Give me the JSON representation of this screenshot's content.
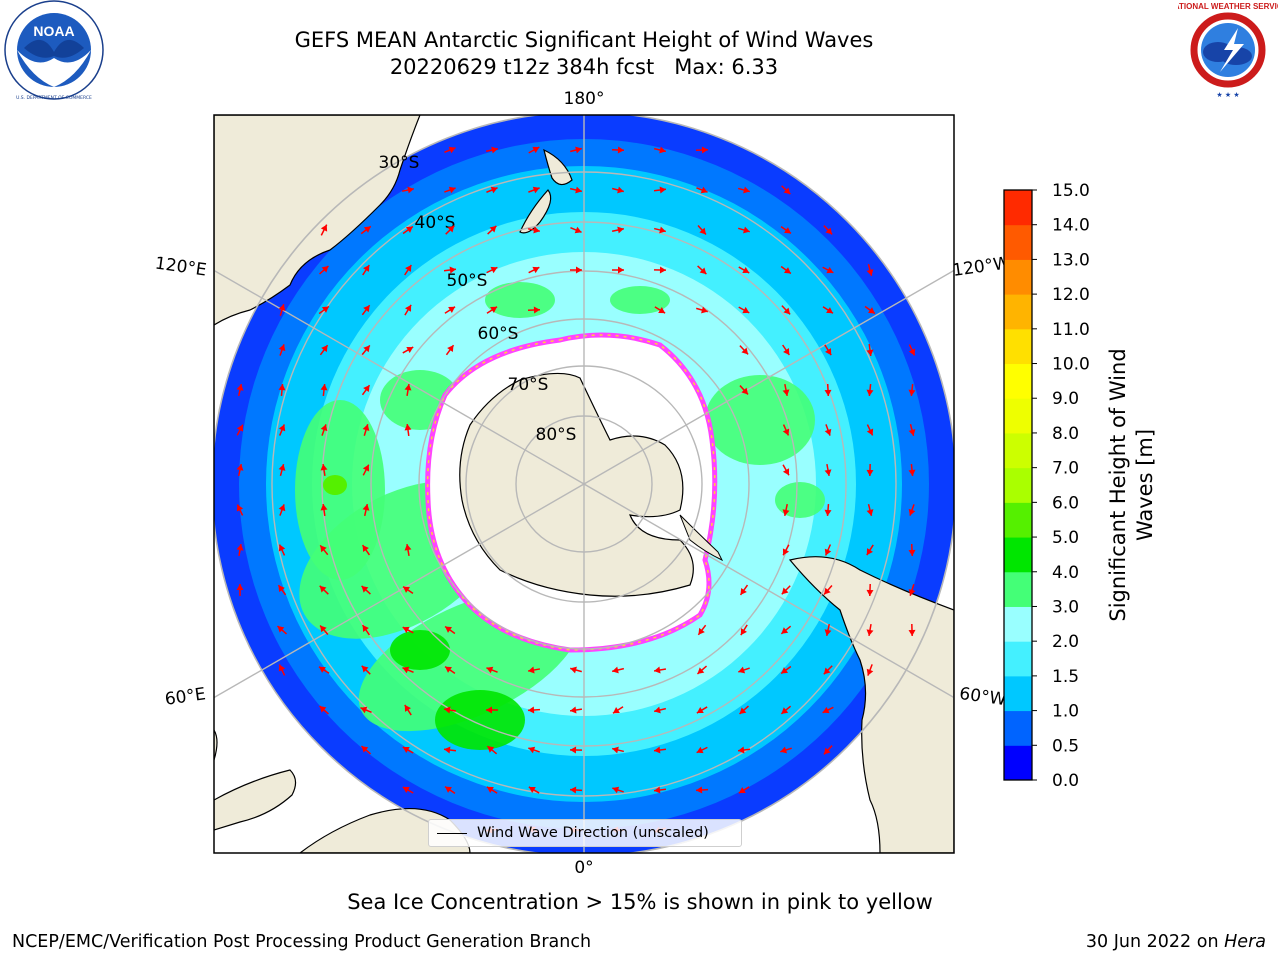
{
  "header": {
    "title_line1": "GEFS MEAN Antarctic Significant Height of Wind Waves",
    "title_line2": "20220629 t12z 384h fcst   Max: 6.33"
  },
  "logos": {
    "left": {
      "text": "NOAA",
      "ring_text": "NATIONAL OCEANIC AND ATMOSPHERIC ADMINISTRATION · U.S. DEPARTMENT OF COMMERCE",
      "icon": "noaa-logo"
    },
    "right": {
      "text": "NATIONAL WEATHER SERVICE",
      "icon": "nws-logo"
    }
  },
  "map": {
    "projection": "south-polar-stereographic",
    "longitude_labels": [
      "180°",
      "120°E",
      "120°W",
      "60°E",
      "60°W",
      "0°"
    ],
    "latitude_labels": [
      "30°S",
      "40°S",
      "50°S",
      "60°S",
      "70°S",
      "80°S"
    ],
    "legend_label": "Wind Wave Direction (unscaled)",
    "colors": {
      "land": "#efebd9",
      "ice": "#ffffff",
      "ice_edge": "#ff44ff",
      "arrow": "#ff0000",
      "grid": "#b8b8b8"
    }
  },
  "colorbar": {
    "label": "Significant Height of Wind Waves [m]",
    "label_line1": "Significant Height of Wind",
    "label_line2": "Waves [m]",
    "ticks": [
      "0.0",
      "0.5",
      "1.0",
      "1.5",
      "2.0",
      "3.0",
      "4.0",
      "5.0",
      "6.0",
      "7.0",
      "8.0",
      "9.0",
      "10.0",
      "11.0",
      "12.0",
      "13.0",
      "14.0",
      "15.0"
    ],
    "colors": [
      "#0000ff",
      "#0064ff",
      "#00c8ff",
      "#44f0ff",
      "#99ffff",
      "#44ff77",
      "#00e600",
      "#55f000",
      "#aaff00",
      "#ccff00",
      "#eeff00",
      "#ffff00",
      "#ffe000",
      "#ffb400",
      "#ff8c00",
      "#ff5a00",
      "#ff2a00"
    ]
  },
  "footer": {
    "note": "Sea Ice Concentration > 15% is shown in pink to yellow",
    "credit": "NCEP/EMC/Verification Post Processing Product Generation Branch",
    "date": "30 Jun 2022 on",
    "host": "Hera"
  }
}
